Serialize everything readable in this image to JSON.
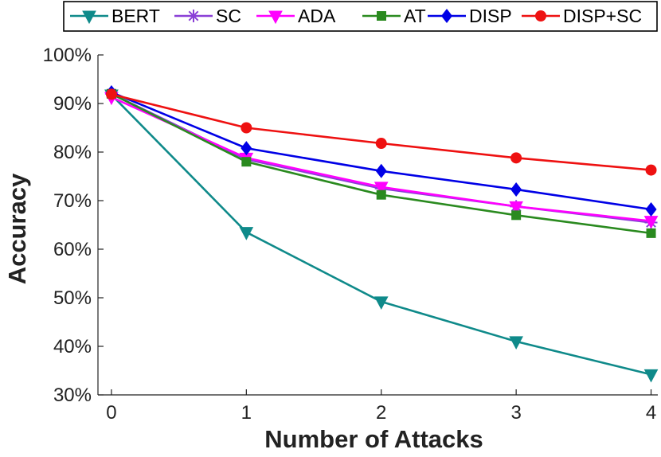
{
  "chart_data": {
    "type": "line",
    "title": "",
    "xlabel": "Number of Attacks",
    "ylabel": "Accuracy",
    "x": [
      0,
      1,
      2,
      3,
      4
    ],
    "xlim": [
      -0.1,
      4.05
    ],
    "ylim": [
      30,
      100
    ],
    "x_ticks": [
      "0",
      "1",
      "2",
      "3",
      "4"
    ],
    "y_ticks": [
      "30%",
      "40%",
      "50%",
      "60%",
      "70%",
      "80%",
      "90%",
      "100%"
    ],
    "grid": false,
    "legend": "top, outside plot, horizontal",
    "series": [
      {
        "name": "BERT",
        "color": "#0f8a8a",
        "marker": "triangle-down",
        "values": [
          91.8,
          63.5,
          49.2,
          41.0,
          34.2
        ]
      },
      {
        "name": "SC",
        "color": "#8a3fd6",
        "marker": "asterisk",
        "values": [
          92.0,
          78.5,
          72.5,
          68.8,
          65.5
        ]
      },
      {
        "name": "ADA",
        "color": "#ff00ff",
        "marker": "triangle-down",
        "values": [
          91.3,
          78.8,
          72.8,
          68.8,
          65.8
        ]
      },
      {
        "name": "AT",
        "color": "#2a8a1f",
        "marker": "square",
        "values": [
          92.0,
          78.0,
          71.2,
          67.0,
          63.3
        ]
      },
      {
        "name": "DISP",
        "color": "#0000e6",
        "marker": "diamond",
        "values": [
          92.3,
          80.8,
          76.1,
          72.3,
          68.2
        ]
      },
      {
        "name": "DISP+SC",
        "color": "#ee1111",
        "marker": "circle",
        "values": [
          91.9,
          85.0,
          81.8,
          78.8,
          76.3
        ]
      }
    ]
  }
}
